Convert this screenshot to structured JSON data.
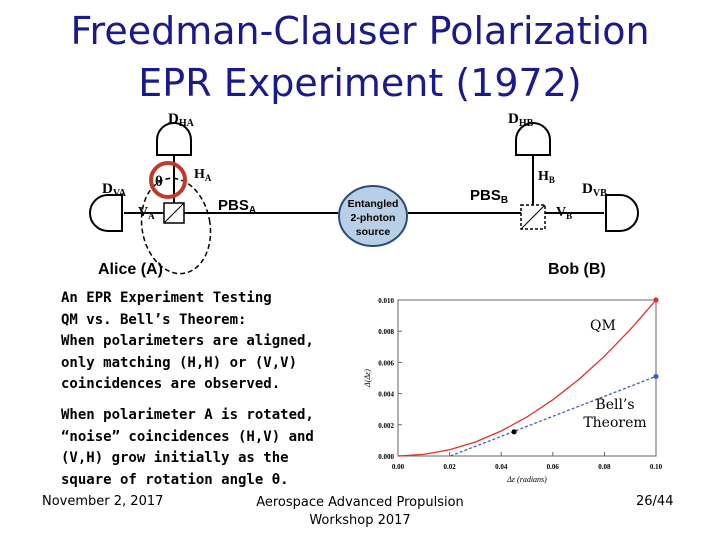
{
  "slide": {
    "title_line1": "Freedman-Clauser Polarization",
    "title_line2": "EPR Experiment (1972)"
  },
  "diagram": {
    "source_label_line1": "Entangled",
    "source_label_line2": "2-photon",
    "source_label_line3": "source",
    "alice": "Alice (A)",
    "bob": "Bob (B)",
    "d_ha": "D",
    "d_ha_sub": "HA",
    "d_hb": "D",
    "d_hb_sub": "HB",
    "d_va": "D",
    "d_va_sub": "VA",
    "d_vb": "D",
    "d_vb_sub": "VB",
    "pbs_a": "PBS",
    "pbs_a_sub": "A",
    "pbs_b": "PBS",
    "pbs_b_sub": "B",
    "h_a": "H",
    "h_a_sub": "A",
    "v_a": "V",
    "v_a_sub": "A",
    "h_b": "H",
    "h_b_sub": "B",
    "v_b": "V",
    "v_b_sub": "B",
    "theta": "θ"
  },
  "text": {
    "p1_l1": "An EPR Experiment Testing",
    "p1_l2": "QM vs. Bell’s Theorem:",
    "p1_l3": "When polarimeters are aligned,",
    "p1_l4": "only matching (H,H) or (V,V)",
    "p1_l5": "coincidences are observed.",
    "p2_l1": "When polarimeter A is rotated,",
    "p2_l2": "“noise” coincidences (H,V) and",
    "p2_l3": "(V,H) grow initially as the",
    "p2_l4": "square of rotation angle θ."
  },
  "footer": {
    "date": "November 2, 2017",
    "event_line1": "Aerospace Advanced Propulsion",
    "event_line2": "Workshop 2017",
    "page": "26/44"
  },
  "chart_data": {
    "type": "line",
    "xlabel": "Δε (radians)",
    "ylabel": "Δ(Δε)",
    "xlim": [
      0,
      0.1
    ],
    "ylim": [
      0,
      0.01
    ],
    "x_ticks": [
      "0.00",
      "0.02",
      "0.04",
      "0.06",
      "0.08",
      "0.10"
    ],
    "y_ticks": [
      "0.000",
      "0.002",
      "0.004",
      "0.006",
      "0.008",
      "0.010"
    ],
    "series": [
      {
        "name": "QM",
        "color": "#e03030",
        "x": [
          0,
          0.01,
          0.02,
          0.03,
          0.04,
          0.05,
          0.06,
          0.07,
          0.08,
          0.09,
          0.1
        ],
        "y": [
          0,
          0.0001,
          0.0004,
          0.0009,
          0.0016,
          0.0025,
          0.0036,
          0.0049,
          0.0064,
          0.0081,
          0.01
        ]
      },
      {
        "name": "Bell’s Theorem",
        "color": "#4060c0",
        "x": [
          0,
          0.1
        ],
        "y": [
          -0.0013,
          0.0051
        ]
      }
    ],
    "points": [
      {
        "x": 0.1,
        "y": 0.01,
        "color": "#e03030"
      },
      {
        "x": 0.1,
        "y": 0.0051,
        "color": "#4060c0"
      },
      {
        "x": 0.045,
        "y": 0.00155,
        "color": "#000000"
      }
    ],
    "annotations": [
      "QM",
      "Bell’s",
      "Theorem"
    ]
  }
}
